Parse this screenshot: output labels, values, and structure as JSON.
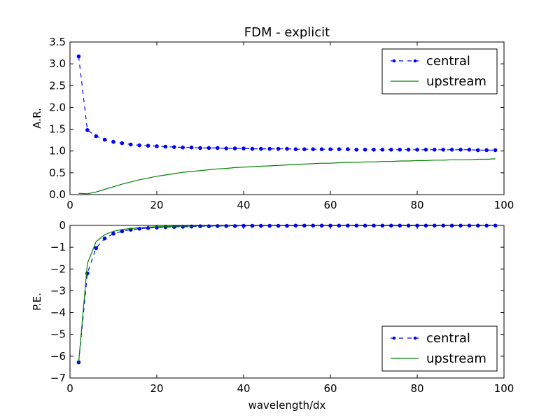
{
  "chart_data": [
    {
      "type": "line",
      "title": "FDM - explicit",
      "xlabel": "",
      "ylabel": "A.R.",
      "xlim": [
        0,
        100
      ],
      "ylim": [
        0,
        3.5
      ],
      "xticks": [
        "0",
        "20",
        "40",
        "60",
        "80",
        "100"
      ],
      "yticks": [
        "0.0",
        "0.5",
        "1.0",
        "1.5",
        "2.0",
        "2.5",
        "3.0",
        "3.5"
      ],
      "xtick_values": [
        0,
        20,
        40,
        60,
        80,
        100
      ],
      "ytick_values": [
        0,
        0.5,
        1.0,
        1.5,
        2.0,
        2.5,
        3.0,
        3.5
      ],
      "legend_position": "top-right",
      "grid": false,
      "series": [
        {
          "name": "central",
          "color": "#0000ff",
          "style": "dashed-with-dots",
          "x": [
            2,
            4,
            6,
            8,
            10,
            12,
            14,
            16,
            18,
            20,
            22,
            24,
            26,
            28,
            30,
            32,
            34,
            36,
            38,
            40,
            42,
            44,
            46,
            48,
            50,
            52,
            54,
            56,
            58,
            60,
            62,
            64,
            66,
            68,
            70,
            72,
            74,
            76,
            78,
            80,
            82,
            84,
            86,
            88,
            90,
            92,
            94,
            96,
            98
          ],
          "y": [
            3.17,
            1.48,
            1.34,
            1.26,
            1.21,
            1.18,
            1.15,
            1.13,
            1.12,
            1.11,
            1.1,
            1.09,
            1.08,
            1.08,
            1.07,
            1.07,
            1.07,
            1.06,
            1.06,
            1.06,
            1.05,
            1.05,
            1.05,
            1.05,
            1.05,
            1.04,
            1.04,
            1.04,
            1.04,
            1.04,
            1.04,
            1.04,
            1.03,
            1.03,
            1.03,
            1.03,
            1.03,
            1.03,
            1.03,
            1.03,
            1.03,
            1.03,
            1.03,
            1.03,
            1.03,
            1.03,
            1.02,
            1.02,
            1.02
          ]
        },
        {
          "name": "upstream",
          "color": "#008000",
          "style": "solid",
          "x": [
            2,
            4,
            6,
            8,
            10,
            12,
            14,
            16,
            18,
            20,
            22,
            24,
            26,
            28,
            30,
            32,
            34,
            36,
            38,
            40,
            42,
            44,
            46,
            48,
            50,
            52,
            54,
            56,
            58,
            60,
            62,
            64,
            66,
            68,
            70,
            72,
            74,
            76,
            78,
            80,
            82,
            84,
            86,
            88,
            90,
            92,
            94,
            96,
            98
          ],
          "y": [
            0.03,
            0.02,
            0.06,
            0.12,
            0.18,
            0.24,
            0.29,
            0.34,
            0.38,
            0.42,
            0.45,
            0.48,
            0.51,
            0.53,
            0.55,
            0.57,
            0.59,
            0.6,
            0.62,
            0.63,
            0.64,
            0.65,
            0.66,
            0.67,
            0.68,
            0.69,
            0.7,
            0.71,
            0.72,
            0.72,
            0.73,
            0.74,
            0.74,
            0.75,
            0.75,
            0.76,
            0.76,
            0.77,
            0.77,
            0.78,
            0.78,
            0.79,
            0.79,
            0.8,
            0.8,
            0.8,
            0.81,
            0.81,
            0.82
          ]
        }
      ]
    },
    {
      "type": "line",
      "title": "",
      "xlabel": "wavelength/dx",
      "ylabel": "P.E.",
      "xlim": [
        0,
        100
      ],
      "ylim": [
        -7,
        0
      ],
      "xticks": [
        "0",
        "20",
        "40",
        "60",
        "80",
        "100"
      ],
      "yticks": [
        "−7",
        "−6",
        "−5",
        "−4",
        "−3",
        "−2",
        "−1",
        "0"
      ],
      "xtick_values": [
        0,
        20,
        40,
        60,
        80,
        100
      ],
      "ytick_values": [
        -7,
        -6,
        -5,
        -4,
        -3,
        -2,
        -1,
        0
      ],
      "legend_position": "bottom-right",
      "grid": false,
      "series": [
        {
          "name": "central",
          "color": "#0000ff",
          "style": "dashed-with-dots",
          "x": [
            2,
            4,
            6,
            8,
            10,
            12,
            14,
            16,
            18,
            20,
            22,
            24,
            26,
            28,
            30,
            32,
            34,
            36,
            38,
            40,
            42,
            44,
            46,
            48,
            50,
            52,
            54,
            56,
            58,
            60,
            62,
            64,
            66,
            68,
            70,
            72,
            74,
            76,
            78,
            80,
            82,
            84,
            86,
            88,
            90,
            92,
            94,
            96,
            98
          ],
          "y": [
            -6.28,
            -2.2,
            -1.04,
            -0.6,
            -0.38,
            -0.27,
            -0.2,
            -0.15,
            -0.12,
            -0.1,
            -0.08,
            -0.07,
            -0.06,
            -0.05,
            -0.04,
            -0.04,
            -0.03,
            -0.03,
            -0.03,
            -0.02,
            -0.02,
            -0.02,
            -0.02,
            -0.02,
            -0.02,
            -0.01,
            -0.01,
            -0.01,
            -0.01,
            -0.01,
            -0.01,
            -0.01,
            -0.01,
            -0.01,
            -0.01,
            -0.01,
            -0.01,
            -0.01,
            -0.01,
            -0.01,
            -0.01,
            -0.01,
            -0.01,
            -0.01,
            -0.01,
            -0.01,
            -0.01,
            -0.01,
            -0.01
          ]
        },
        {
          "name": "upstream",
          "color": "#008000",
          "style": "solid",
          "x": [
            2,
            4,
            6,
            8,
            10,
            12,
            14,
            16,
            18,
            20,
            22,
            24,
            26,
            28,
            30,
            32,
            34,
            36,
            38,
            40,
            42,
            44,
            46,
            48,
            50,
            52,
            54,
            56,
            58,
            60,
            62,
            64,
            66,
            68,
            70,
            72,
            74,
            76,
            78,
            80,
            82,
            84,
            86,
            88,
            90,
            92,
            94,
            96,
            98
          ],
          "y": [
            -6.28,
            -1.75,
            -0.75,
            -0.42,
            -0.27,
            -0.19,
            -0.14,
            -0.1,
            -0.08,
            -0.06,
            -0.05,
            -0.04,
            -0.03,
            -0.03,
            -0.02,
            -0.02,
            -0.02,
            -0.02,
            -0.01,
            -0.01,
            -0.01,
            -0.01,
            -0.01,
            -0.01,
            -0.01,
            -0.01,
            -0.01,
            -0.01,
            -0.01,
            -0.01,
            -0.01,
            -0.01,
            -0.01,
            -0.01,
            -0.01,
            0,
            0,
            0,
            0,
            0,
            0,
            0,
            0,
            0,
            0,
            0,
            0,
            0,
            0
          ]
        }
      ]
    }
  ]
}
